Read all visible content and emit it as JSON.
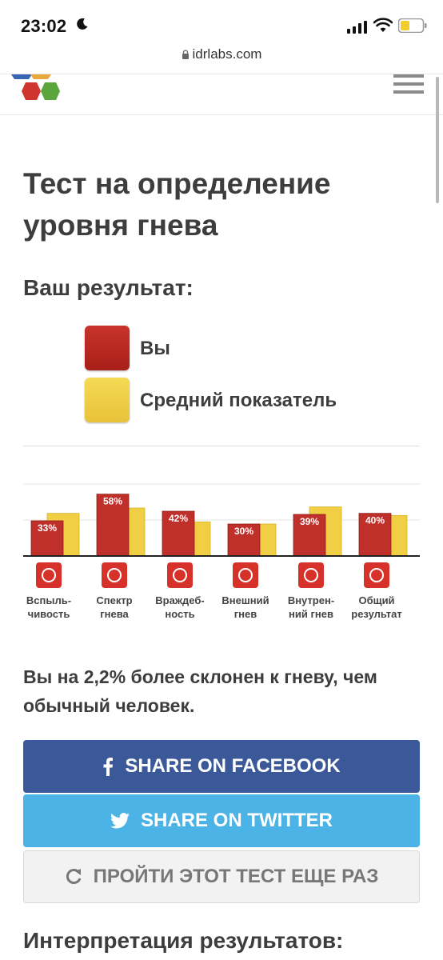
{
  "status_bar": {
    "time": "23:02"
  },
  "browser": {
    "url": "idrlabs.com"
  },
  "page": {
    "title": "Тест на определение уровня гнева",
    "result_heading": "Ваш результат:",
    "legend": {
      "you": "Вы",
      "average": "Средний показатель"
    },
    "conclusion": "Вы на 2,2% более склонен к гневу, чем обычный человек.",
    "buttons": {
      "facebook": "SHARE ON FACEBOOK",
      "twitter": "SHARE ON TWITTER",
      "retake": "ПРОЙТИ ЭТОТ ТЕСТ ЕЩЕ РАЗ"
    },
    "next_heading": "Интерпретация результатов:"
  },
  "colors": {
    "you": "#c0302a",
    "average": "#f0cf45",
    "facebook": "#3b5998",
    "twitter": "#4cb3e6"
  },
  "chart_data": {
    "type": "bar",
    "categories": [
      "Вспыль-\nчивость",
      "Спектр\nгнева",
      "Враждеб-\nность",
      "Внешний\nгнев",
      "Внутрен-\nний гнев",
      "Общий\nрезультат"
    ],
    "category_icons": [
      "storm-icon",
      "fan-icon",
      "hostility-icon",
      "outward-icon",
      "inward-icon",
      "overall-graph-icon"
    ],
    "series": [
      {
        "name": "Вы",
        "values": [
          33,
          58,
          42,
          30,
          39,
          40
        ],
        "labels": [
          "33%",
          "58%",
          "42%",
          "30%",
          "39%",
          "40%"
        ]
      },
      {
        "name": "Средний показатель",
        "values": [
          40,
          45,
          32,
          30,
          46,
          38
        ]
      }
    ],
    "ylim": [
      0,
      60
    ]
  }
}
